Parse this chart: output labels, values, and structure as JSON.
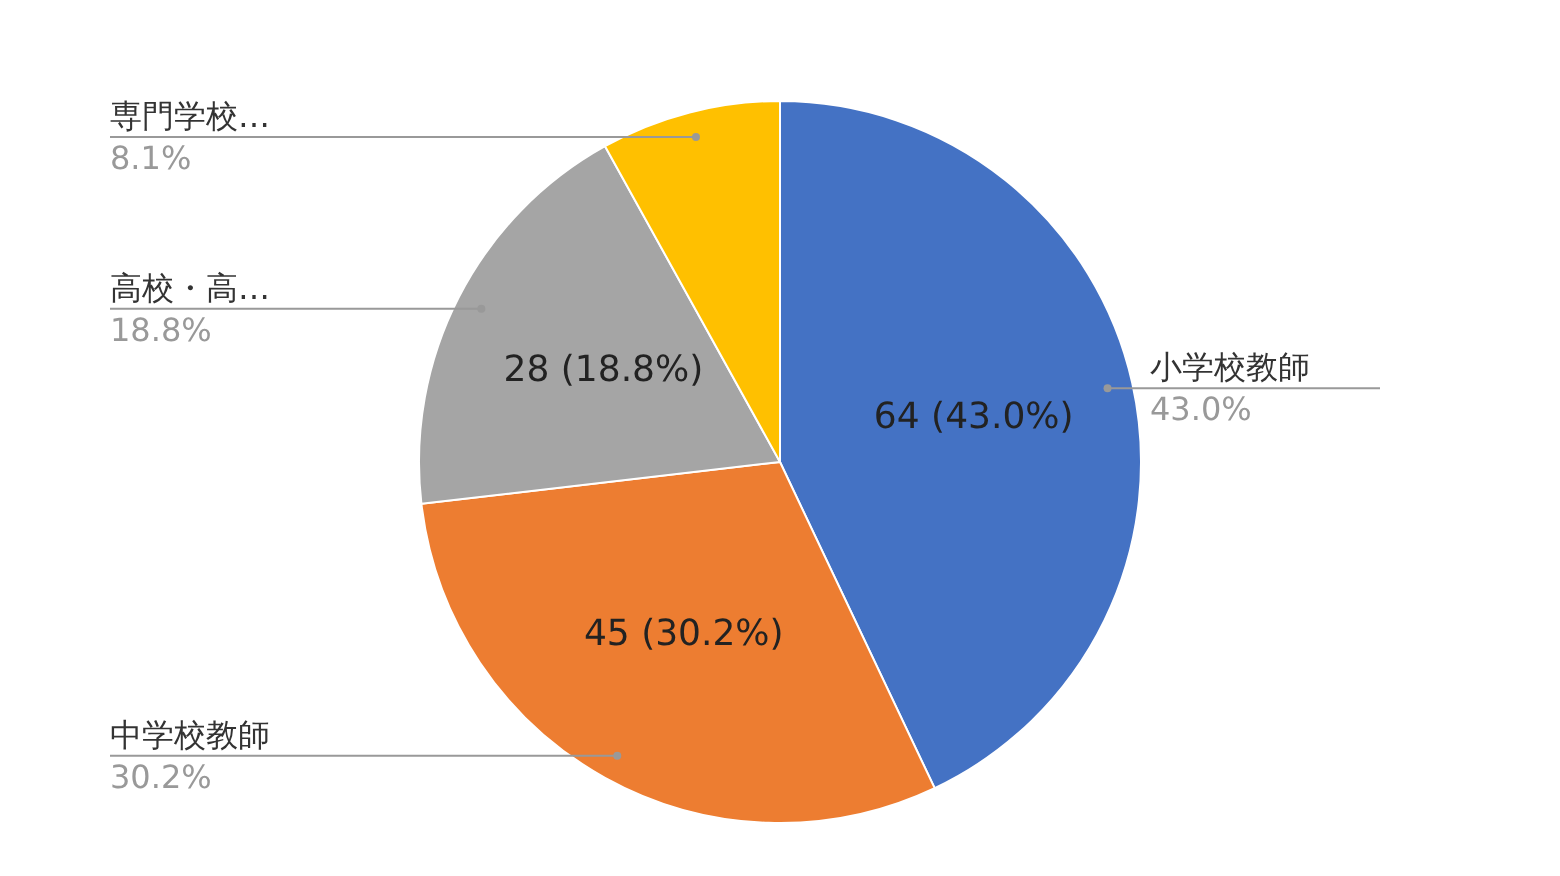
{
  "chart_data": {
    "type": "pie",
    "categories": [
      "小学校教師",
      "中学校教師",
      "高校・高…",
      "専門学校…"
    ],
    "values": [
      64,
      45,
      28,
      12
    ],
    "colors": [
      "#4472c4",
      "#ed7d31",
      "#a5a5a5",
      "#ffc000"
    ],
    "value_labels": [
      "64 (43.0%)",
      "45 (30.2%)",
      "28 (18.8%)",
      null
    ],
    "annotations": [
      "43.0%",
      "30.2%",
      "18.8%",
      "8.1%"
    ],
    "legend": false
  }
}
